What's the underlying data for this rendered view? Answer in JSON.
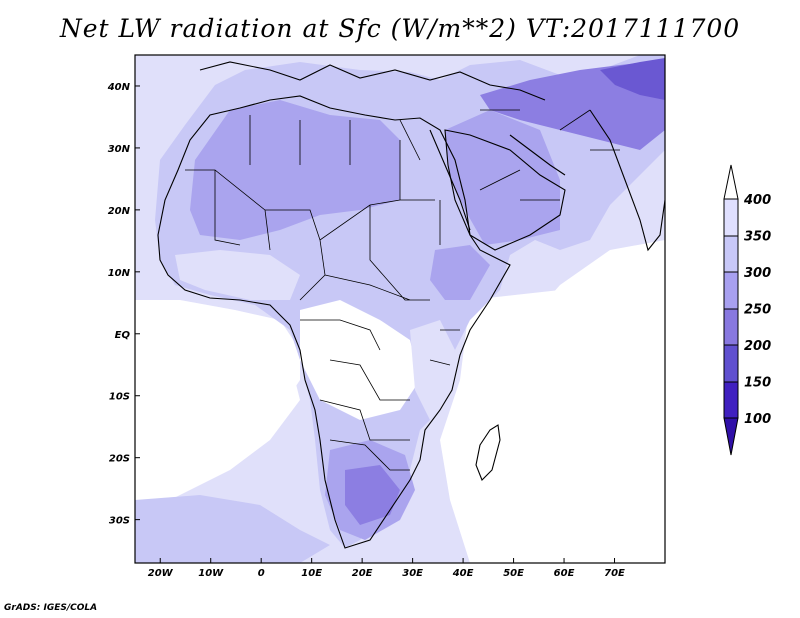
{
  "title": "Net LW radiation at Sfc (W/m**2) VT:2017111700",
  "credit": "GrADS: IGES/COLA",
  "map": {
    "lon_range": [
      -25,
      80
    ],
    "lat_range": [
      -37,
      45
    ],
    "lon_ticks": [
      {
        "value": -20,
        "label": "20W"
      },
      {
        "value": -10,
        "label": "10W"
      },
      {
        "value": 0,
        "label": "0"
      },
      {
        "value": 10,
        "label": "10E"
      },
      {
        "value": 20,
        "label": "20E"
      },
      {
        "value": 30,
        "label": "30E"
      },
      {
        "value": 40,
        "label": "40E"
      },
      {
        "value": 50,
        "label": "50E"
      },
      {
        "value": 60,
        "label": "60E"
      },
      {
        "value": 70,
        "label": "70E"
      }
    ],
    "lat_ticks": [
      {
        "value": 40,
        "label": "40N"
      },
      {
        "value": 30,
        "label": "30N"
      },
      {
        "value": 20,
        "label": "20N"
      },
      {
        "value": 10,
        "label": "10N"
      },
      {
        "value": 0,
        "label": "EQ"
      },
      {
        "value": -10,
        "label": "10S"
      },
      {
        "value": -20,
        "label": "20S"
      },
      {
        "value": -30,
        "label": "30S"
      }
    ]
  },
  "colorbar": {
    "levels": [
      "400",
      "350",
      "300",
      "250",
      "200",
      "150",
      "100"
    ],
    "colors_top_to_bottom": [
      "#ffffff",
      "#e0e0ff",
      "#c8c8f8",
      "#a8a0f0",
      "#8878e0",
      "#6050d0",
      "#4020c0",
      "#3010a8"
    ]
  },
  "fill_colors": {
    "ocean": "#ffffff",
    "level_350": "#e0e0fa",
    "level_300": "#c8c8f6",
    "level_250": "#aaa4ee",
    "level_200": "#8c7ee2",
    "level_150": "#6a58d2"
  }
}
